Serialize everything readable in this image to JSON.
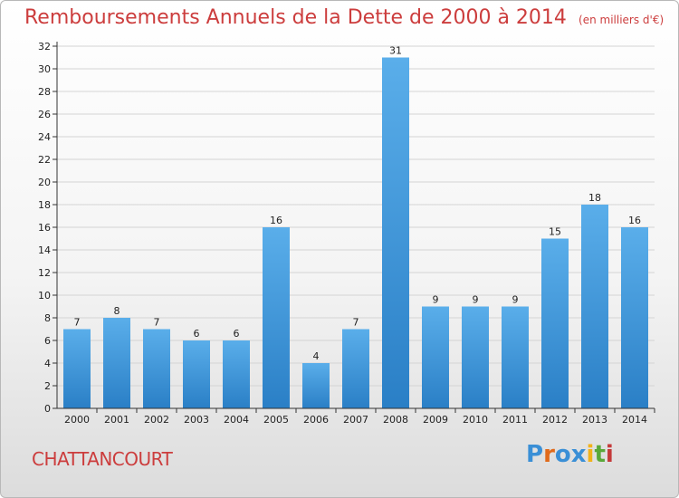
{
  "header": {
    "title": "Remboursements Annuels de la Dette de 2000 à 2014",
    "subtitle": "(en milliers d'€)"
  },
  "place": "CHATTANCOURT",
  "logo": {
    "text": "Proxiti",
    "letters": [
      {
        "ch": "P",
        "color": "#3a8fd6"
      },
      {
        "ch": "r",
        "color": "#e06a1b"
      },
      {
        "ch": "o",
        "color": "#3a8fd6"
      },
      {
        "ch": "x",
        "color": "#3a8fd6"
      },
      {
        "ch": "i",
        "color": "#f2b21a"
      },
      {
        "ch": "t",
        "color": "#5aa83a"
      },
      {
        "ch": "i",
        "color": "#c53a3a"
      }
    ]
  },
  "chart_data": {
    "type": "bar",
    "categories": [
      "2000",
      "2001",
      "2002",
      "2003",
      "2004",
      "2005",
      "2006",
      "2007",
      "2008",
      "2009",
      "2010",
      "2011",
      "2012",
      "2013",
      "2014"
    ],
    "values": [
      7,
      8,
      7,
      6,
      6,
      16,
      4,
      7,
      31,
      9,
      9,
      9,
      15,
      18,
      16
    ],
    "title": "Remboursements Annuels de la Dette de 2000 à 2014",
    "subtitle": "(en milliers d'€)",
    "xlabel": "",
    "ylabel": "",
    "ylim": [
      0,
      32
    ],
    "yticks": [
      0,
      2,
      4,
      6,
      8,
      10,
      12,
      14,
      16,
      18,
      20,
      22,
      24,
      26,
      28,
      30,
      32
    ],
    "grid": true,
    "legend": "none",
    "colors": {
      "bar_light": "#5aaeea",
      "bar_dark": "#2a7fc6",
      "grid": "#d4d4d4",
      "axis": "#333333",
      "title": "#cc3d3d"
    }
  }
}
